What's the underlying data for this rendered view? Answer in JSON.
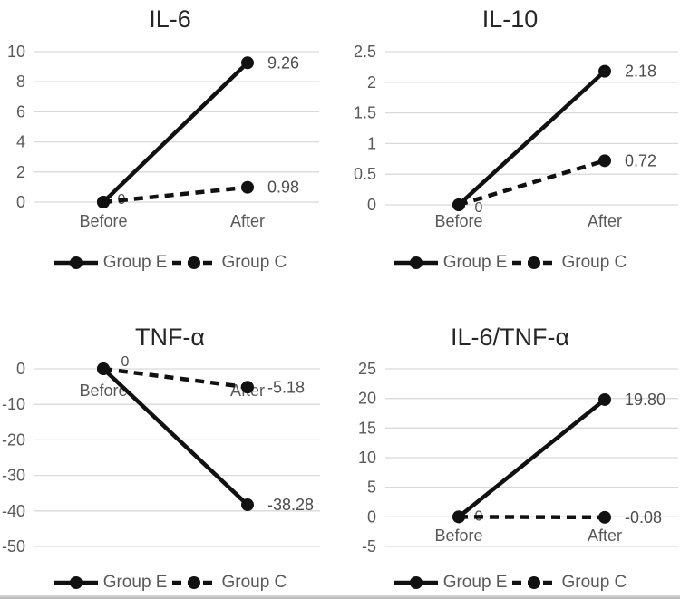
{
  "palette": {
    "series_color": "#111111",
    "gridline_color": "#d9d9d9",
    "tick_label_color": "#595959",
    "category_label_color": "#595959",
    "title_color": "#262626",
    "data_label_color": "#4d4d4d",
    "background": "#ffffff"
  },
  "chart_data": [
    {
      "id": "il6",
      "type": "line",
      "title": "IL-6",
      "categories": [
        "Before",
        "After"
      ],
      "series": [
        {
          "name": "Group E",
          "line_style": "solid",
          "values": [
            0,
            9.26
          ],
          "data_labels": [
            null,
            "9.26"
          ]
        },
        {
          "name": "Group C",
          "line_style": "dashed",
          "values": [
            0,
            0.98
          ],
          "data_labels": [
            "0",
            "0.98"
          ]
        }
      ],
      "ylim": [
        0,
        10
      ],
      "yticks": [
        "10",
        "8",
        "6",
        "4",
        "2",
        "0"
      ],
      "grid": true,
      "legend_position": "bottom",
      "legend": [
        "Group E",
        "Group C"
      ]
    },
    {
      "id": "il10",
      "type": "line",
      "title": "IL-10",
      "categories": [
        "Before",
        "After"
      ],
      "series": [
        {
          "name": "Group E",
          "line_style": "solid",
          "values": [
            0,
            2.18
          ],
          "data_labels": [
            null,
            "2.18"
          ]
        },
        {
          "name": "Group C",
          "line_style": "dashed",
          "values": [
            0,
            0.72
          ],
          "data_labels": [
            "0",
            "0.72"
          ]
        }
      ],
      "ylim": [
        0,
        2.5
      ],
      "yticks": [
        "2.5",
        "2",
        "1.5",
        "1",
        "0.5",
        "0"
      ],
      "grid": true,
      "legend_position": "bottom",
      "legend": [
        "Group E",
        "Group C"
      ]
    },
    {
      "id": "tnfa",
      "type": "line",
      "title": "TNF-α",
      "categories": [
        "Before",
        "After"
      ],
      "series": [
        {
          "name": "Group E",
          "line_style": "solid",
          "values": [
            0,
            -38.28
          ],
          "data_labels": [
            null,
            "-38.28"
          ]
        },
        {
          "name": "Group C",
          "line_style": "dashed",
          "values": [
            0,
            -5.18
          ],
          "data_labels": [
            "0",
            "-5.18"
          ]
        }
      ],
      "ylim": [
        -50,
        0
      ],
      "yticks": [
        "0",
        "-10",
        "-20",
        "-30",
        "-40",
        "-50"
      ],
      "grid": true,
      "legend_position": "bottom",
      "legend": [
        "Group E",
        "Group C"
      ]
    },
    {
      "id": "il6tnfa",
      "type": "line",
      "title": "IL-6/TNF-α",
      "categories": [
        "Before",
        "After"
      ],
      "series": [
        {
          "name": "Group E",
          "line_style": "solid",
          "values": [
            0,
            19.8
          ],
          "data_labels": [
            null,
            "19.80"
          ]
        },
        {
          "name": "Group C",
          "line_style": "dashed",
          "values": [
            0,
            -0.08
          ],
          "data_labels": [
            "0",
            "-0.08"
          ]
        }
      ],
      "ylim": [
        -5,
        25
      ],
      "yticks": [
        "25",
        "20",
        "15",
        "10",
        "5",
        "0",
        "-5"
      ],
      "grid": true,
      "legend_position": "bottom",
      "legend": [
        "Group E",
        "Group C"
      ]
    }
  ]
}
